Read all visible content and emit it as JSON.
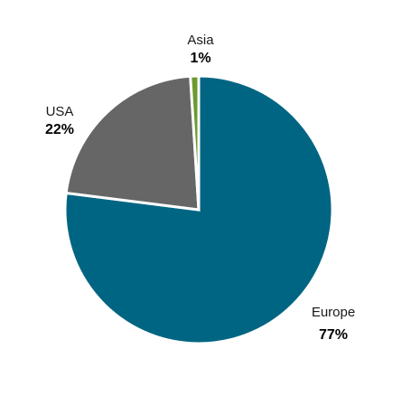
{
  "chart_data": {
    "type": "pie",
    "categories": [
      "Europe",
      "USA",
      "Asia"
    ],
    "values": [
      77,
      22,
      1
    ],
    "value_labels": [
      "77%",
      "22%",
      "1%"
    ],
    "colors": [
      "#006582",
      "#666666",
      "#6c9a2f"
    ],
    "start": "12 o'clock",
    "direction": "clockwise",
    "legend": "none",
    "labels_placement": "outside"
  }
}
